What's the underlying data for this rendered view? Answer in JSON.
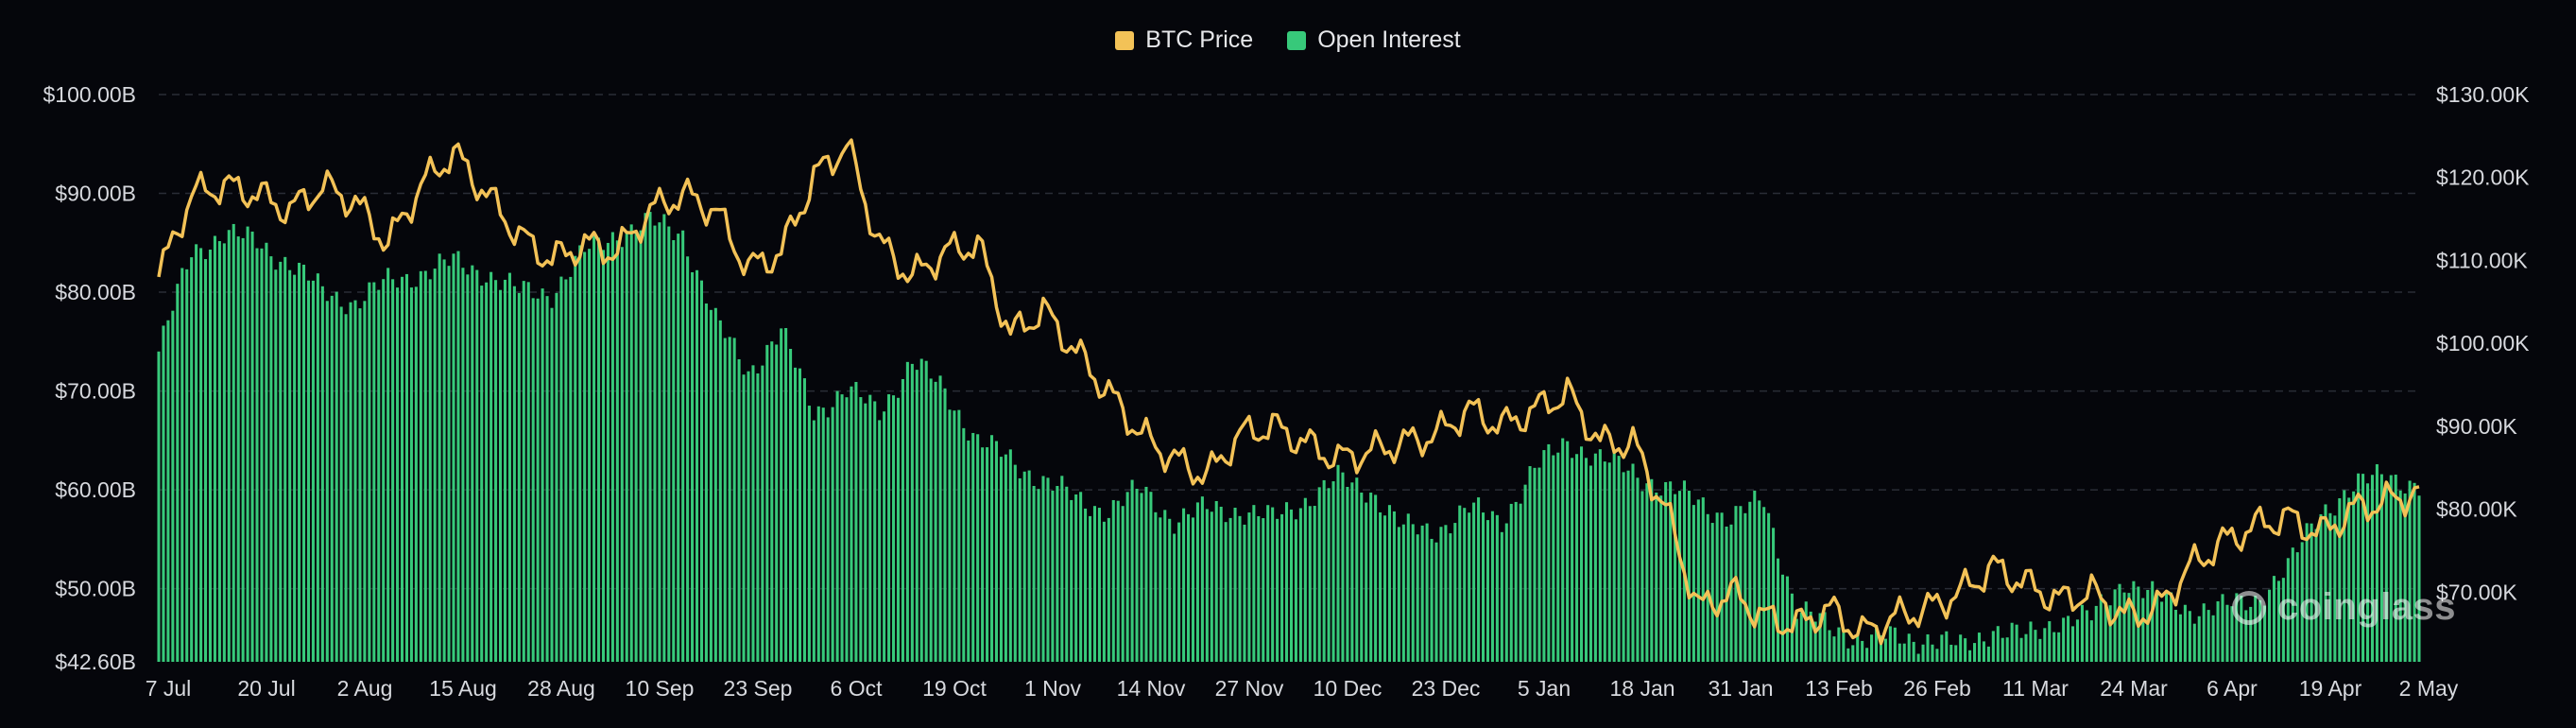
{
  "colors": {
    "price": "#f3c257",
    "oi": "#37c97a",
    "background": "#05060b",
    "grid": "#2a2d36",
    "text": "#d7d9de"
  },
  "legend": {
    "price_label": "BTC Price",
    "oi_label": "Open Interest"
  },
  "watermark": "coinglass",
  "chart_data": {
    "type": "bar",
    "title": "",
    "x_labels": [
      "7 Jul",
      "20 Jul",
      "2 Aug",
      "15 Aug",
      "28 Aug",
      "10 Sep",
      "23 Sep",
      "6 Oct",
      "19 Oct",
      "1 Nov",
      "14 Nov",
      "27 Nov",
      "10 Dec",
      "23 Dec",
      "5 Jan",
      "18 Jan",
      "31 Jan",
      "13 Feb",
      "26 Feb",
      "11 Mar",
      "24 Mar",
      "6 Apr",
      "19 Apr",
      "2 May"
    ],
    "left_axis": {
      "ticks": [
        "$42.60B",
        "$50.00B",
        "$60.00B",
        "$70.00B",
        "$80.00B",
        "$90.00B",
        "$100.00B"
      ],
      "tick_values": [
        42.6,
        50,
        60,
        70,
        80,
        90,
        100
      ],
      "min": 42.6,
      "max": 100
    },
    "right_axis": {
      "ticks": [
        "$70.00K",
        "$80.00K",
        "$90.00K",
        "$100.00K",
        "$110.00K",
        "$120.00K",
        "$130.00K"
      ],
      "tick_values": [
        70,
        80,
        90,
        100,
        110,
        120,
        130
      ],
      "min": 61.6,
      "max": 130
    },
    "grid": "horizontal-dashed",
    "legend_position": "top-center",
    "series": [
      {
        "name": "Open Interest",
        "kind": "bar",
        "axis": "left",
        "unit": "B USD",
        "values_per_week": [
          74,
          84,
          86,
          85,
          83,
          80,
          79,
          81,
          82,
          83,
          82,
          80,
          80,
          84,
          86,
          87,
          86,
          77,
          72,
          76,
          68,
          70,
          68,
          73,
          70,
          65,
          63,
          61,
          59,
          58,
          60,
          57,
          58,
          58,
          57,
          59,
          61,
          60,
          56,
          56,
          58,
          57,
          62,
          65,
          63,
          62,
          60,
          59,
          57,
          59,
          48,
          46,
          45,
          45,
          45,
          44,
          46,
          45,
          47,
          47,
          51,
          49,
          48,
          48,
          49,
          52,
          58,
          60,
          62,
          60
        ]
      },
      {
        "name": "BTC Price",
        "kind": "line",
        "axis": "right",
        "unit": "K USD",
        "values_per_week": [
          108,
          118,
          119,
          118,
          116,
          119,
          117,
          112,
          119,
          123,
          118,
          113,
          110,
          112,
          111,
          116,
          118,
          116,
          109,
          111,
          120,
          124,
          112,
          108,
          111,
          112,
          101,
          104,
          99,
          94,
          89,
          86,
          84,
          89,
          90,
          88,
          86,
          87,
          88,
          89,
          92,
          90,
          92,
          94,
          88,
          88,
          80,
          68,
          70,
          67,
          66,
          68,
          65,
          67,
          68,
          70,
          73,
          71,
          69,
          70,
          67,
          68,
          73,
          76,
          78,
          79,
          77,
          80,
          81,
          82
        ]
      }
    ]
  }
}
